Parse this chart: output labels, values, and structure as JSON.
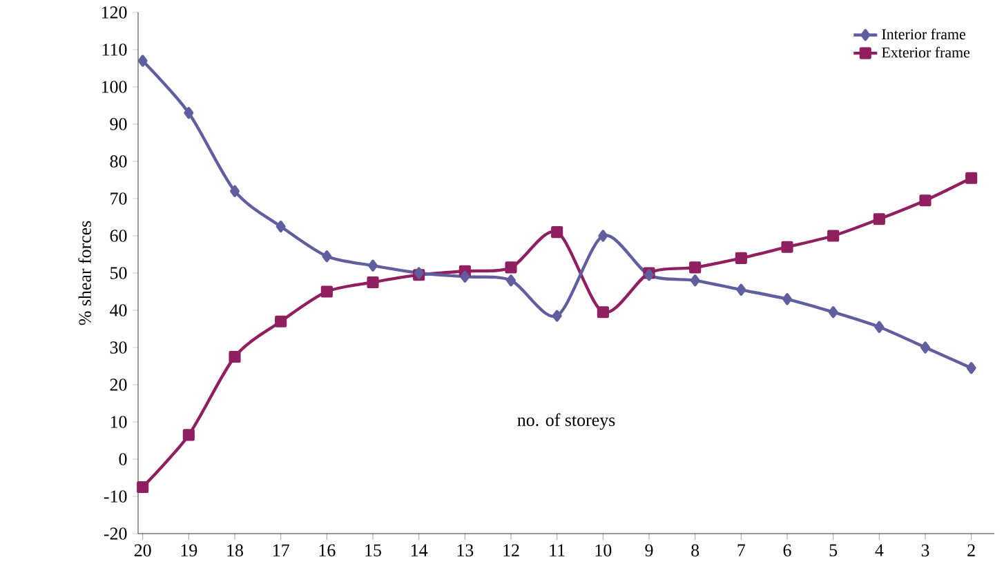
{
  "chart_data": {
    "type": "line",
    "xlabel": "no. of storeys",
    "ylabel": "% shear forces",
    "categories": [
      "20",
      "19",
      "18",
      "17",
      "16",
      "15",
      "14",
      "13",
      "12",
      "11",
      "10",
      "9",
      "8",
      "7",
      "6",
      "5",
      "4",
      "3",
      "2"
    ],
    "series": [
      {
        "name": "Interior frame",
        "color": "#5f5f9f",
        "marker": "diamond",
        "values": [
          107,
          93,
          72,
          62.5,
          54.5,
          52,
          50,
          49,
          48,
          38.5,
          60,
          49.5,
          48,
          45.5,
          43,
          39.5,
          35.5,
          30,
          24.5
        ]
      },
      {
        "name": "Exterior frame",
        "color": "#8f1f5f",
        "marker": "square",
        "values": [
          -7.5,
          6.5,
          27.5,
          37,
          45,
          47.5,
          49.5,
          50.5,
          51.5,
          61,
          39.5,
          50,
          51.5,
          54,
          57,
          60,
          64.5,
          69.5,
          75.5
        ]
      }
    ],
    "ylim": [
      -20,
      120
    ],
    "yticks": [
      -20,
      -10,
      0,
      10,
      20,
      30,
      40,
      50,
      60,
      70,
      80,
      90,
      100,
      110,
      120
    ],
    "legend": "top right",
    "line_style": "solid",
    "grid": false
  }
}
